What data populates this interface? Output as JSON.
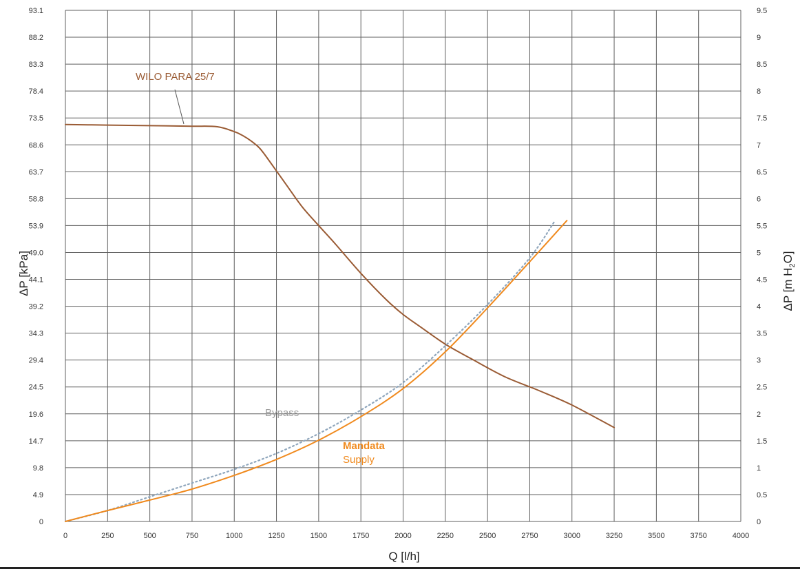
{
  "chart_data": {
    "type": "line",
    "xlabel": "Q [l/h]",
    "ylabel_left": "ΔP [kPa]",
    "ylabel_right_parts": [
      "ΔP [m H",
      "2",
      "O]"
    ],
    "xlim": [
      0,
      4000
    ],
    "ylim_left": [
      0,
      93.1
    ],
    "ylim_right": [
      0,
      9.5
    ],
    "x_ticks": [
      "0",
      "250",
      "500",
      "750",
      "1000",
      "1250",
      "1500",
      "1750",
      "2000",
      "2250",
      "2500",
      "2750",
      "3000",
      "3250",
      "3500",
      "3750",
      "4000"
    ],
    "x_tick_values": [
      0,
      250,
      500,
      750,
      1000,
      1250,
      1500,
      1750,
      2000,
      2250,
      2500,
      2750,
      3000,
      3250,
      3500,
      3750,
      4000
    ],
    "y_ticks_left": [
      "0",
      "4.9",
      "9.8",
      "14.7",
      "19.6",
      "24.5",
      "29.4",
      "34.3",
      "39.2",
      "44.1",
      "49.0",
      "53.9",
      "58.8",
      "63.7",
      "68.6",
      "73.5",
      "78.4",
      "83.3",
      "88.2",
      "93.1"
    ],
    "y_ticks_right": [
      "0",
      "0.5",
      "1",
      "1.5",
      "2",
      "2.5",
      "3",
      "3.5",
      "4",
      "4.5",
      "5",
      "5.5",
      "6",
      "6.5",
      "7",
      "7.5",
      "8",
      "8.5",
      "9",
      "9.5"
    ],
    "grid": true,
    "series": [
      {
        "name": "WILO PARA 25/7",
        "color": "#9a5b34",
        "style": "solid",
        "x": [
          0,
          250,
          500,
          750,
          900,
          1000,
          1050,
          1100,
          1150,
          1200,
          1300,
          1400,
          1500,
          1600,
          1750,
          1900,
          2000,
          2100,
          2250,
          2400,
          2600,
          2800,
          3000,
          3250
        ],
        "y": [
          72.3,
          72.2,
          72.1,
          72.0,
          71.9,
          71.0,
          70.3,
          69.3,
          68.0,
          66.0,
          61.7,
          57.4,
          53.9,
          50.5,
          45.2,
          40.4,
          37.7,
          35.5,
          32.3,
          29.7,
          26.4,
          23.9,
          21.2,
          17.1
        ]
      },
      {
        "name": "Bypass",
        "color": "#8fa6bc",
        "style": "dotted",
        "x": [
          0,
          250,
          500,
          750,
          1000,
          1250,
          1500,
          1750,
          2000,
          2250,
          2500,
          2750,
          2900
        ],
        "y": [
          0,
          2.0,
          4.5,
          7.0,
          9.5,
          12.4,
          16.0,
          20.3,
          25.3,
          32.0,
          39.5,
          48.0,
          54.8
        ]
      },
      {
        "name": "Mandata",
        "color": "#f08a1e",
        "style": "solid",
        "x": [
          0,
          250,
          500,
          750,
          1000,
          1250,
          1500,
          1750,
          2000,
          2250,
          2500,
          2750,
          2970
        ],
        "y": [
          0,
          2.0,
          3.9,
          5.9,
          8.4,
          11.3,
          14.8,
          19.1,
          24.2,
          30.9,
          38.9,
          47.3,
          54.8
        ]
      }
    ],
    "annotations": {
      "wilo_label": "WILO PARA 25/7",
      "bypass_label": "Bypass",
      "mandata_label": "Mandata",
      "supply_label": "Supply"
    },
    "colors": {
      "grid": "#5f5f5f",
      "axis_text": "#333333",
      "wilo": "#9a5b34",
      "bypass_text": "#9b9b9b",
      "mandata": "#f08a1e"
    }
  }
}
